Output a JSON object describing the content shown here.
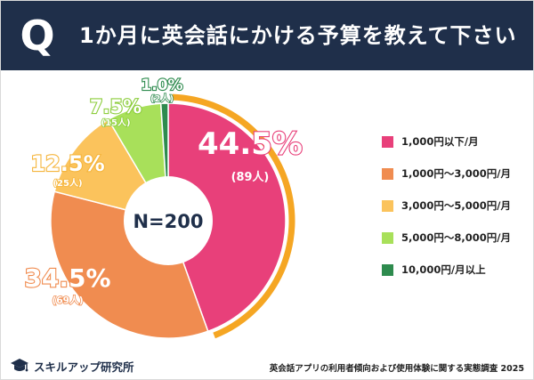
{
  "header": {
    "badge": "Q",
    "title": "1か月に英会話にかける予算を教えて下さい"
  },
  "chart_data": {
    "type": "pie",
    "center_label": "N=200",
    "slices": [
      {
        "label": "1,000円以下/月",
        "percent": 44.5,
        "percent_label": "44.5%",
        "count_label": "(89人)",
        "color": "#e8407a"
      },
      {
        "label": "1,000円〜3,000円/月",
        "percent": 34.5,
        "percent_label": "34.5%",
        "count_label": "(69人)",
        "color": "#f08c50"
      },
      {
        "label": "3,000円〜5,000円/月",
        "percent": 12.5,
        "percent_label": "12.5%",
        "count_label": "(25人)",
        "color": "#fbc35c"
      },
      {
        "label": "5,000円〜8,000円/月",
        "percent": 7.5,
        "percent_label": "7.5%",
        "count_label": "(15人)",
        "color": "#a8e05a"
      },
      {
        "label": "10,000円/月以上",
        "percent": 1.0,
        "percent_label": "1.0%",
        "count_label": "(2人)",
        "color": "#2e8b4e"
      }
    ],
    "highlight_color": "#f5a623",
    "label_colors": [
      "#e8407a",
      "#f08c50",
      "#f5b53c",
      "#8ccd3c",
      "#2e8b4e"
    ]
  },
  "footer": {
    "brand": "スキルアップ研究所",
    "source": "英会話アプリの利用者傾向および使用体験に関する実態調査 2025"
  }
}
